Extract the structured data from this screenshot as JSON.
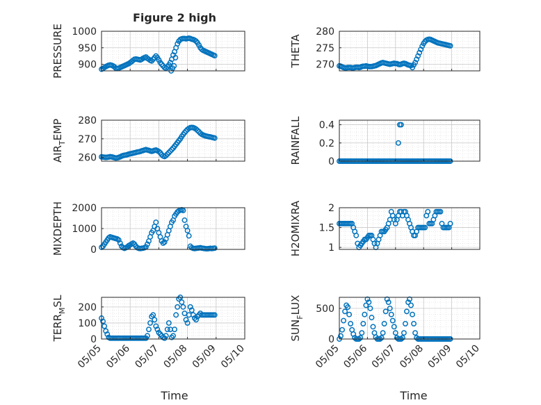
{
  "figure": {
    "title": "Figure 2 high",
    "marker_color": "#0072BD",
    "grid": true,
    "x_tick_labels": [
      "05/05",
      "05/06",
      "05/07",
      "05/08",
      "05/09",
      "05/10"
    ],
    "x_label": "Time"
  },
  "chart_data": [
    {
      "type": "scatter",
      "ylabel": {
        "main": "PRESSURE",
        "sub": ""
      },
      "ylim": [
        880,
        1000
      ],
      "yticks": [
        900,
        950,
        1000
      ],
      "x": [
        5.0,
        5.05,
        5.1,
        5.15,
        5.2,
        5.25,
        5.3,
        5.35,
        5.4,
        5.45,
        5.5,
        5.55,
        5.6,
        5.65,
        5.7,
        5.75,
        5.8,
        5.85,
        5.9,
        5.95,
        6.0,
        6.05,
        6.1,
        6.15,
        6.2,
        6.25,
        6.3,
        6.35,
        6.4,
        6.45,
        6.5,
        6.55,
        6.6,
        6.65,
        6.7,
        6.75,
        6.8,
        6.85,
        6.9,
        6.95,
        7.0,
        7.05,
        7.1,
        7.15,
        7.2,
        7.25,
        7.3,
        7.35,
        7.4,
        7.45,
        7.5,
        7.55,
        7.6,
        7.65,
        7.7,
        7.75,
        7.8,
        7.85,
        7.9,
        7.95,
        8.0,
        8.05,
        8.1,
        8.15,
        8.2,
        8.25,
        8.3,
        8.35,
        8.4,
        8.45,
        8.5,
        8.55,
        8.6,
        8.65,
        8.7,
        8.75,
        8.8,
        8.85,
        8.9,
        8.95,
        7.43,
        7.48,
        7.53,
        7.58
      ],
      "y": [
        885,
        887,
        890,
        893,
        895,
        897,
        898,
        897,
        895,
        892,
        888,
        887,
        888,
        890,
        892,
        894,
        896,
        898,
        900,
        902,
        905,
        908,
        912,
        915,
        916,
        915,
        914,
        913,
        915,
        918,
        920,
        922,
        918,
        915,
        912,
        910,
        915,
        920,
        925,
        920,
        913,
        905,
        900,
        895,
        890,
        888,
        892,
        898,
        905,
        915,
        928,
        938,
        950,
        962,
        970,
        975,
        977,
        978,
        978,
        977,
        978,
        979,
        978,
        976,
        975,
        973,
        970,
        965,
        958,
        950,
        945,
        942,
        940,
        938,
        936,
        934,
        932,
        930,
        928,
        926,
        880,
        888,
        895,
        920
      ],
      "ycols": "fixed"
    },
    {
      "type": "scatter",
      "ylabel": {
        "main": "THETA",
        "sub": ""
      },
      "ylim": [
        268,
        280
      ],
      "yticks": [
        270,
        275,
        280
      ],
      "x": [
        5.0,
        5.05,
        5.1,
        5.15,
        5.2,
        5.25,
        5.3,
        5.35,
        5.4,
        5.45,
        5.5,
        5.55,
        5.6,
        5.65,
        5.7,
        5.75,
        5.8,
        5.85,
        5.9,
        5.95,
        6.0,
        6.05,
        6.1,
        6.15,
        6.2,
        6.25,
        6.3,
        6.35,
        6.4,
        6.45,
        6.5,
        6.55,
        6.6,
        6.65,
        6.7,
        6.75,
        6.8,
        6.85,
        6.9,
        6.95,
        7.0,
        7.05,
        7.1,
        7.15,
        7.2,
        7.25,
        7.3,
        7.35,
        7.4,
        7.45,
        7.5,
        7.55,
        7.6,
        7.65,
        7.7,
        7.75,
        7.8,
        7.85,
        7.9,
        7.95,
        8.0,
        8.05,
        8.1,
        8.15,
        8.2,
        8.25,
        8.3,
        8.35,
        8.4,
        8.45,
        8.5,
        8.55,
        8.6,
        8.65,
        8.7,
        8.75,
        8.8,
        8.85,
        8.9,
        8.95
      ],
      "y": [
        269.5,
        269.4,
        269.2,
        269.0,
        268.9,
        268.9,
        269.0,
        269.0,
        269.0,
        268.9,
        268.9,
        269.0,
        269.1,
        269.1,
        269.0,
        269.1,
        269.3,
        269.4,
        269.4,
        269.5,
        269.4,
        269.3,
        269.3,
        269.3,
        269.4,
        269.5,
        269.6,
        269.8,
        270.0,
        270.2,
        270.4,
        270.5,
        270.4,
        270.3,
        270.2,
        270.1,
        270.0,
        270.1,
        270.2,
        270.3,
        270.2,
        270.2,
        270.0,
        269.9,
        270.0,
        270.2,
        270.3,
        270.2,
        270.0,
        269.8,
        269.7,
        269.6,
        269.0,
        269.8,
        270.5,
        271.5,
        272.5,
        273.5,
        274.5,
        275.5,
        276.3,
        276.9,
        277.3,
        277.5,
        277.6,
        277.5,
        277.3,
        277.1,
        276.9,
        276.7,
        276.5,
        276.4,
        276.3,
        276.2,
        276.1,
        276.0,
        275.9,
        275.8,
        275.7,
        275.6
      ],
      "ycols": "fixed"
    },
    {
      "type": "scatter",
      "ylabel": {
        "main": "AIR",
        "sub": "T",
        "rest": "EMP"
      },
      "ylim": [
        258,
        280
      ],
      "yticks": [
        260,
        270,
        280
      ],
      "x": [
        5.0,
        5.05,
        5.1,
        5.15,
        5.2,
        5.25,
        5.3,
        5.35,
        5.4,
        5.45,
        5.5,
        5.55,
        5.6,
        5.65,
        5.7,
        5.75,
        5.8,
        5.85,
        5.9,
        5.95,
        6.0,
        6.05,
        6.1,
        6.15,
        6.2,
        6.25,
        6.3,
        6.35,
        6.4,
        6.45,
        6.5,
        6.55,
        6.6,
        6.65,
        6.7,
        6.75,
        6.8,
        6.85,
        6.9,
        6.95,
        7.0,
        7.05,
        7.1,
        7.15,
        7.2,
        7.25,
        7.3,
        7.35,
        7.4,
        7.45,
        7.5,
        7.55,
        7.6,
        7.65,
        7.7,
        7.75,
        7.8,
        7.85,
        7.9,
        7.95,
        8.0,
        8.05,
        8.1,
        8.15,
        8.2,
        8.25,
        8.3,
        8.35,
        8.4,
        8.45,
        8.5,
        8.55,
        8.6,
        8.65,
        8.7,
        8.75,
        8.8,
        8.85,
        8.9,
        8.95
      ],
      "y": [
        260.3,
        260.2,
        260.1,
        260.0,
        260.1,
        260.2,
        260.4,
        260.3,
        260.1,
        259.9,
        259.7,
        259.8,
        260.0,
        260.3,
        260.7,
        261.0,
        261.2,
        261.3,
        261.5,
        261.8,
        262.0,
        262.1,
        262.3,
        262.5,
        262.7,
        262.9,
        263.0,
        263.2,
        263.5,
        263.7,
        264.0,
        264.2,
        264.0,
        263.8,
        263.5,
        263.3,
        263.5,
        263.8,
        264.0,
        263.6,
        263.2,
        262.5,
        261.5,
        260.8,
        260.5,
        261.0,
        261.8,
        262.6,
        263.4,
        264.2,
        265.0,
        266.0,
        267.0,
        268.0,
        269.0,
        270.0,
        271.2,
        272.3,
        273.3,
        274.2,
        275.0,
        275.6,
        276.0,
        276.1,
        276.0,
        275.7,
        275.2,
        274.5,
        273.8,
        273.0,
        272.4,
        272.0,
        271.7,
        271.5,
        271.3,
        271.1,
        271.0,
        270.8,
        270.6,
        270.4
      ],
      "ycols": "fixed"
    },
    {
      "type": "scatter",
      "ylabel": {
        "main": "RAINFALL",
        "sub": ""
      },
      "ylim": [
        0,
        0.45
      ],
      "yticks": [
        0,
        0.2,
        0.4
      ],
      "x": [
        7.1,
        7.15,
        7.2
      ],
      "y": [
        0.2,
        0.4,
        0.4
      ],
      "zero_range": [
        5.0,
        8.95
      ],
      "ycols": "fixed"
    },
    {
      "type": "scatter",
      "ylabel": {
        "main": "MIXDEPTH",
        "sub": ""
      },
      "ylim": [
        0,
        2000
      ],
      "yticks": [
        0,
        1000,
        2000
      ],
      "x": [
        5.0,
        5.05,
        5.1,
        5.15,
        5.2,
        5.25,
        5.3,
        5.35,
        5.4,
        5.45,
        5.5,
        5.55,
        5.6,
        5.65,
        5.7,
        5.75,
        5.8,
        5.85,
        5.9,
        5.95,
        6.0,
        6.05,
        6.1,
        6.15,
        6.2,
        6.25,
        6.3,
        6.35,
        6.4,
        6.45,
        6.5,
        6.55,
        6.6,
        6.65,
        6.7,
        6.75,
        6.8,
        6.85,
        6.9,
        6.95,
        7.0,
        7.05,
        7.1,
        7.15,
        7.2,
        7.25,
        7.3,
        7.35,
        7.4,
        7.45,
        7.5,
        7.55,
        7.6,
        7.65,
        7.7,
        7.75,
        7.8,
        7.85,
        7.9,
        7.95,
        8.0,
        8.05,
        8.1,
        8.15,
        8.2,
        8.25,
        8.3,
        8.35,
        8.4,
        8.45,
        8.5,
        8.55,
        8.6,
        8.65,
        8.7,
        8.75,
        8.8,
        8.85,
        8.9,
        8.95
      ],
      "y": [
        100,
        150,
        250,
        350,
        450,
        550,
        600,
        580,
        560,
        540,
        520,
        500,
        450,
        300,
        150,
        80,
        50,
        80,
        120,
        180,
        220,
        260,
        300,
        250,
        150,
        80,
        50,
        40,
        50,
        60,
        80,
        120,
        250,
        400,
        600,
        800,
        900,
        1100,
        1300,
        1000,
        800,
        600,
        400,
        300,
        350,
        500,
        700,
        900,
        1100,
        1300,
        1400,
        1600,
        1700,
        1800,
        1850,
        1880,
        1900,
        1870,
        1400,
        1100,
        900,
        650,
        150,
        80,
        50,
        40,
        50,
        60,
        70,
        80,
        60,
        50,
        40,
        30,
        30,
        40,
        50,
        40,
        50,
        60
      ],
      "ycols": "fixed"
    },
    {
      "type": "scatter",
      "ylabel": {
        "main": "H2OMIXRA",
        "sub": ""
      },
      "ylim": [
        0.95,
        2.0
      ],
      "yticks": [
        1,
        1.5,
        2
      ],
      "x": [
        5.0,
        5.05,
        5.1,
        5.15,
        5.2,
        5.25,
        5.3,
        5.35,
        5.4,
        5.45,
        5.5,
        5.55,
        5.6,
        5.65,
        5.7,
        5.75,
        5.8,
        5.85,
        5.9,
        5.95,
        6.0,
        6.05,
        6.1,
        6.15,
        6.2,
        6.25,
        6.3,
        6.35,
        6.4,
        6.45,
        6.5,
        6.55,
        6.6,
        6.65,
        6.7,
        6.75,
        6.8,
        6.85,
        6.9,
        6.95,
        7.0,
        7.05,
        7.1,
        7.15,
        7.2,
        7.25,
        7.3,
        7.35,
        7.4,
        7.45,
        7.5,
        7.55,
        7.6,
        7.65,
        7.7,
        7.75,
        7.8,
        7.85,
        7.9,
        7.95,
        8.0,
        8.05,
        8.1,
        8.15,
        8.2,
        8.25,
        8.3,
        8.35,
        8.4,
        8.45,
        8.5,
        8.55,
        8.6,
        8.65,
        8.7,
        8.75,
        8.8,
        8.85,
        8.9,
        8.95
      ],
      "y": [
        1.6,
        1.6,
        1.6,
        1.6,
        1.6,
        1.6,
        1.6,
        1.6,
        1.6,
        1.6,
        1.5,
        1.4,
        1.3,
        1.1,
        1.0,
        1.05,
        1.1,
        1.15,
        1.2,
        1.2,
        1.25,
        1.3,
        1.3,
        1.3,
        1.2,
        1.1,
        1.0,
        1.1,
        1.2,
        1.3,
        1.4,
        1.4,
        1.4,
        1.45,
        1.5,
        1.6,
        1.7,
        1.9,
        1.8,
        1.7,
        1.6,
        1.7,
        1.8,
        1.9,
        1.9,
        1.8,
        1.9,
        1.9,
        1.8,
        1.7,
        1.6,
        1.5,
        1.4,
        1.3,
        1.3,
        1.4,
        1.5,
        1.5,
        1.5,
        1.5,
        1.5,
        1.5,
        1.8,
        1.9,
        1.6,
        1.6,
        1.6,
        1.7,
        1.8,
        1.9,
        1.9,
        1.9,
        1.9,
        1.6,
        1.5,
        1.5,
        1.5,
        1.5,
        1.5,
        1.6
      ],
      "ycols": "fixed"
    },
    {
      "type": "scatter",
      "ylabel": {
        "main": "TERR",
        "sub": "M",
        "rest": "SL"
      },
      "ylim": [
        0,
        260
      ],
      "yticks": [
        0,
        100,
        200
      ],
      "x": [
        5.0,
        5.05,
        5.1,
        5.15,
        5.2,
        5.25,
        5.3,
        5.35,
        5.4,
        5.45,
        5.5,
        5.55,
        5.6,
        5.65,
        5.7,
        5.75,
        5.8,
        5.85,
        5.9,
        5.95,
        6.0,
        6.05,
        6.1,
        6.15,
        6.2,
        6.25,
        6.3,
        6.35,
        6.4,
        6.45,
        6.5,
        6.55,
        6.6,
        6.65,
        6.7,
        6.75,
        6.8,
        6.85,
        6.9,
        6.95,
        7.0,
        7.05,
        7.1,
        7.15,
        7.2,
        7.25,
        7.3,
        7.35,
        7.4,
        7.45,
        7.5,
        7.55,
        7.6,
        7.65,
        7.7,
        7.75,
        7.8,
        7.85,
        7.9,
        7.95,
        8.0,
        8.05,
        8.1,
        8.15,
        8.2,
        8.25,
        8.3,
        8.35,
        8.4,
        8.45,
        8.5,
        8.55,
        8.6,
        8.65,
        8.7,
        8.75,
        8.8,
        8.85,
        8.9,
        8.95
      ],
      "y": [
        130,
        110,
        80,
        50,
        30,
        10,
        5,
        5,
        5,
        5,
        5,
        5,
        5,
        5,
        5,
        5,
        5,
        5,
        5,
        5,
        5,
        5,
        5,
        5,
        5,
        5,
        5,
        5,
        5,
        5,
        5,
        5,
        20,
        60,
        100,
        140,
        150,
        120,
        80,
        60,
        40,
        30,
        20,
        10,
        5,
        20,
        60,
        100,
        60,
        10,
        20,
        60,
        150,
        200,
        250,
        260,
        230,
        200,
        160,
        120,
        100,
        150,
        200,
        180,
        150,
        130,
        120,
        140,
        150,
        160,
        150,
        150,
        150,
        150,
        150,
        150,
        150,
        150,
        150,
        150
      ],
      "ycols": "fixed"
    },
    {
      "type": "scatter",
      "ylabel": {
        "main": "SUN",
        "sub": "F",
        "rest": "LUX"
      },
      "ylim": [
        0,
        680
      ],
      "yticks": [
        0,
        500
      ],
      "x": [
        5.0,
        5.05,
        5.1,
        5.15,
        5.2,
        5.25,
        5.3,
        5.35,
        5.4,
        5.45,
        5.5,
        5.55,
        5.6,
        5.65,
        5.7,
        5.75,
        5.8,
        5.85,
        5.9,
        5.95,
        6.0,
        6.05,
        6.1,
        6.15,
        6.2,
        6.25,
        6.3,
        6.35,
        6.4,
        6.45,
        6.5,
        6.55,
        6.6,
        6.65,
        6.7,
        6.75,
        6.8,
        6.85,
        6.9,
        6.95,
        7.0,
        7.05,
        7.1,
        7.15,
        7.2,
        7.25,
        7.3,
        7.35,
        7.4,
        7.45,
        7.5,
        7.55,
        7.6,
        7.65,
        7.7,
        7.75,
        7.8,
        7.85,
        7.9,
        7.95,
        8.0,
        8.05,
        8.1,
        8.15,
        8.2,
        8.25,
        8.3,
        8.35,
        8.4,
        8.45,
        8.5,
        8.55,
        8.6,
        8.65,
        8.7,
        8.75,
        8.8,
        8.85,
        8.9,
        8.95
      ],
      "y": [
        0,
        50,
        150,
        300,
        450,
        550,
        520,
        400,
        250,
        150,
        80,
        20,
        0,
        0,
        0,
        20,
        100,
        250,
        400,
        550,
        650,
        600,
        500,
        350,
        200,
        100,
        30,
        0,
        0,
        0,
        20,
        100,
        250,
        450,
        650,
        600,
        500,
        400,
        300,
        200,
        100,
        20,
        0,
        0,
        0,
        20,
        100,
        250,
        450,
        600,
        650,
        550,
        400,
        250,
        100,
        20,
        0,
        0,
        0,
        0,
        0,
        0,
        0,
        0,
        0,
        0,
        0,
        0,
        0,
        0,
        0,
        0,
        0,
        0,
        0,
        0,
        0,
        0,
        0,
        0
      ],
      "ycols": "fixed"
    }
  ]
}
